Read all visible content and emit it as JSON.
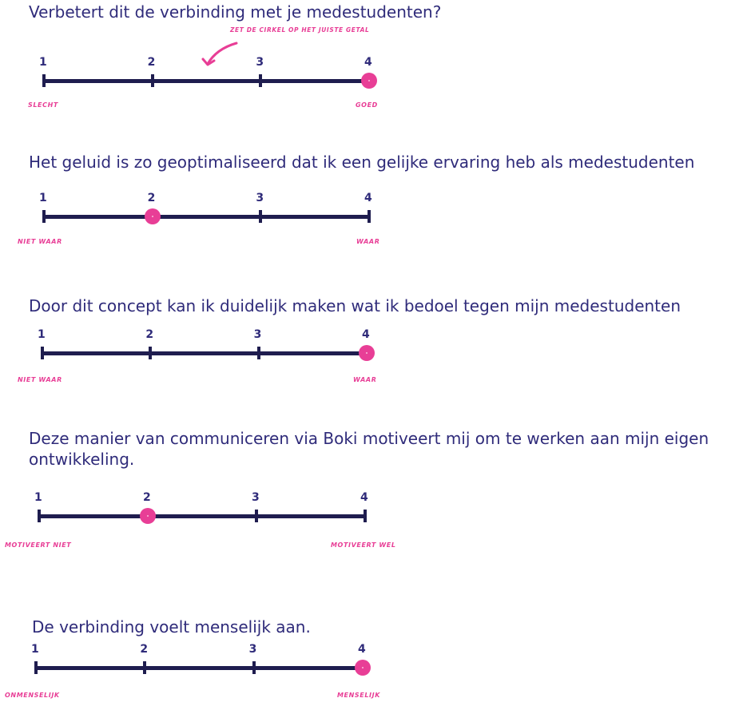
{
  "instruction": "Zet de cirkel op het juiste getal",
  "accent_color": "#e83e96",
  "line_color": "#1f1d4f",
  "text_color": "#2f2b7a",
  "scale_numbers": [
    "1",
    "2",
    "3",
    "4"
  ],
  "questions": [
    {
      "text": "Verbetert dit de verbinding met je medestudenten?",
      "left_label": "slecht",
      "right_label": "goed",
      "selected": 4
    },
    {
      "text": "Het geluid is zo geoptimaliseerd dat ik een gelijke ervaring heb als medestudenten",
      "left_label": "Niet waar",
      "right_label": "Waar",
      "selected": 2
    },
    {
      "text": "Door dit concept kan ik duidelijk maken wat ik bedoel tegen mijn medestudenten",
      "left_label": "niet waar",
      "right_label": "waar",
      "selected": 4
    },
    {
      "text": "Deze manier van communiceren via Boki motiveert mij om te werken aan mijn eigen ontwikkeling.",
      "left_label": "MOtiveert niet",
      "right_label": "MOtiveert wel",
      "selected": 2
    },
    {
      "text": "De verbinding voelt menselijk aan.",
      "left_label": "Onmenselijk",
      "right_label": "menselijk",
      "selected": 4
    }
  ]
}
